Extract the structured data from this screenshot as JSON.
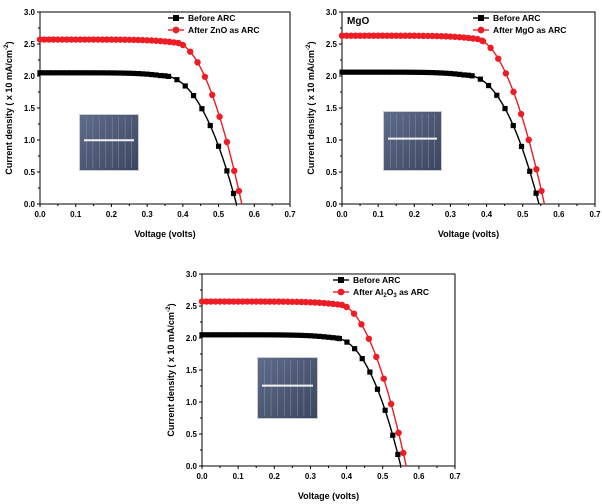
{
  "colors": {
    "before": "#000000",
    "after": "#ee1c24"
  },
  "chart_data": [
    {
      "type": "line",
      "panel_label": "",
      "xlabel": "Voltage (volts)",
      "ylabel": "Current density ( x 10 mA/cm",
      "ylabel_sup": "-2",
      "ylabel_end": ")",
      "xlim": [
        0.0,
        0.7
      ],
      "ylim": [
        0.0,
        3.0
      ],
      "x_ticks": [
        "0.0",
        "0.1",
        "0.2",
        "0.3",
        "0.4",
        "0.5",
        "0.6",
        "0.7"
      ],
      "y_ticks": [
        "0.0",
        "0.5",
        "1.0",
        "1.5",
        "2.0",
        "2.5",
        "3.0"
      ],
      "legend_position": "top-right",
      "inset": "photo of solar cell",
      "series": [
        {
          "name": "Before ARC",
          "label_parts": [
            "Before ARC"
          ],
          "color_key": "before",
          "marker": "square",
          "isc": 2.05,
          "voc": 0.55,
          "knee": 0.34,
          "curvature": 2.2
        },
        {
          "name": "After ZnO as ARC",
          "label_parts": [
            "After ZnO as ARC"
          ],
          "color_key": "after",
          "marker": "circle",
          "isc": 2.57,
          "voc": 0.565,
          "knee": 0.38,
          "curvature": 1.9
        }
      ]
    },
    {
      "type": "line",
      "panel_label": "MgO",
      "xlabel": "Voltage (volts)",
      "ylabel": "Current density ( x 10 mA/cm",
      "ylabel_sup": "-2",
      "ylabel_end": ")",
      "xlim": [
        0.0,
        0.7
      ],
      "ylim": [
        0.0,
        3.0
      ],
      "x_ticks": [
        "0.0",
        "0.1",
        "0.2",
        "0.3",
        "0.4",
        "0.5",
        "0.6",
        "0.7"
      ],
      "y_ticks": [
        "0.0",
        "0.5",
        "1.0",
        "1.5",
        "2.0",
        "2.5",
        "3.0"
      ],
      "legend_position": "top-right",
      "inset": "photo of solar cell",
      "series": [
        {
          "name": "Before ARC",
          "label_parts": [
            "Before ARC"
          ],
          "color_key": "before",
          "marker": "square",
          "isc": 2.06,
          "voc": 0.545,
          "knee": 0.34,
          "curvature": 2.2
        },
        {
          "name": "After MgO as ARC",
          "label_parts": [
            "After MgO as ARC"
          ],
          "color_key": "after",
          "marker": "circle",
          "isc": 2.63,
          "voc": 0.56,
          "knee": 0.37,
          "curvature": 1.9
        }
      ]
    },
    {
      "type": "line",
      "panel_label": "",
      "xlabel": "Voltage (volts)",
      "ylabel": "Current density ( x 10 mA/cm",
      "ylabel_sup": "-2",
      "ylabel_end": ")",
      "xlim": [
        0.0,
        0.7
      ],
      "ylim": [
        0.0,
        3.0
      ],
      "x_ticks": [
        "0.0",
        "0.1",
        "0.2",
        "0.3",
        "0.4",
        "0.5",
        "0.6",
        "0.7"
      ],
      "y_ticks": [
        "0.0",
        "0.5",
        "1.0",
        "1.5",
        "2.0",
        "2.5",
        "3.0"
      ],
      "legend_position": "top-right",
      "inset": "photo of solar cell",
      "series": [
        {
          "name": "Before ARC",
          "label_parts": [
            "Before ARC"
          ],
          "color_key": "before",
          "marker": "square",
          "isc": 2.05,
          "voc": 0.55,
          "knee": 0.36,
          "curvature": 2.2
        },
        {
          "name": "After Al2O3 as ARC",
          "label_parts": [
            "After Al",
            "2",
            "O",
            "3",
            " as ARC"
          ],
          "color_key": "after",
          "marker": "circle",
          "isc": 2.57,
          "voc": 0.565,
          "knee": 0.38,
          "curvature": 1.9
        }
      ]
    }
  ]
}
